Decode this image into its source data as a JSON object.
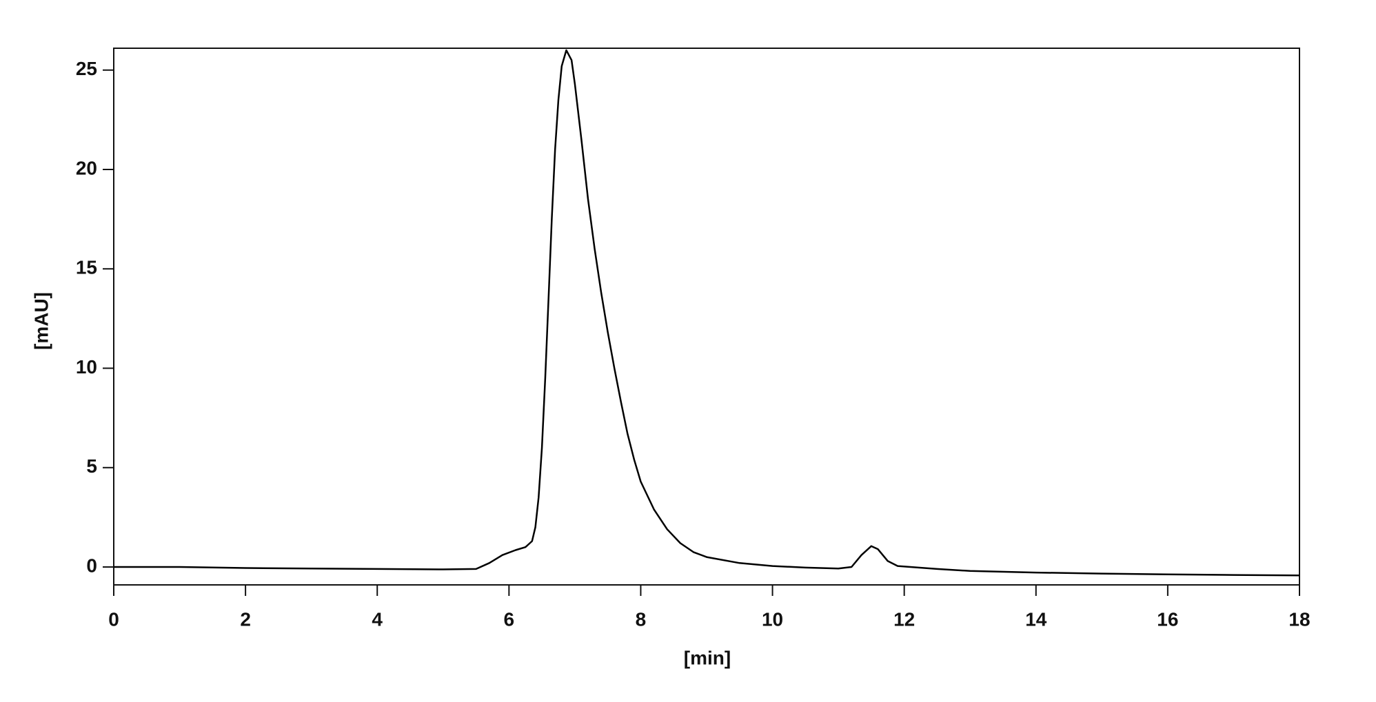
{
  "chart_data": {
    "type": "line",
    "xlabel": "[min]",
    "ylabel": "[mAU]",
    "x": [
      0,
      1,
      2,
      3,
      4,
      5,
      5.5,
      5.7,
      5.9,
      6.1,
      6.25,
      6.35,
      6.4,
      6.45,
      6.5,
      6.55,
      6.6,
      6.65,
      6.7,
      6.75,
      6.8,
      6.87,
      6.95,
      7.0,
      7.1,
      7.2,
      7.3,
      7.4,
      7.5,
      7.6,
      7.7,
      7.8,
      7.9,
      8.0,
      8.2,
      8.4,
      8.6,
      8.8,
      9.0,
      9.5,
      10,
      10.5,
      11,
      11.2,
      11.35,
      11.5,
      11.6,
      11.75,
      11.9,
      12.5,
      13,
      14,
      15,
      16,
      17,
      18
    ],
    "values": [
      0.0,
      0.0,
      -0.05,
      -0.08,
      -0.1,
      -0.12,
      -0.1,
      0.2,
      0.6,
      0.85,
      1.0,
      1.3,
      2.0,
      3.5,
      6.0,
      9.5,
      13.5,
      17.5,
      21.0,
      23.5,
      25.2,
      26.0,
      25.5,
      24.3,
      21.5,
      18.5,
      16.0,
      13.8,
      11.8,
      10.0,
      8.3,
      6.7,
      5.4,
      4.3,
      2.9,
      1.9,
      1.2,
      0.75,
      0.5,
      0.2,
      0.05,
      -0.03,
      -0.08,
      0.0,
      0.6,
      1.05,
      0.9,
      0.3,
      0.05,
      -0.1,
      -0.2,
      -0.28,
      -0.33,
      -0.37,
      -0.4,
      -0.42
    ],
    "color": "#000000",
    "xlim": [
      0,
      18
    ],
    "xticks": [
      0,
      2,
      4,
      6,
      8,
      10,
      12,
      14,
      16,
      18
    ],
    "ylim": [
      -0.9,
      26.1
    ],
    "yticks": [
      0,
      5,
      10,
      15,
      20,
      25
    ]
  }
}
